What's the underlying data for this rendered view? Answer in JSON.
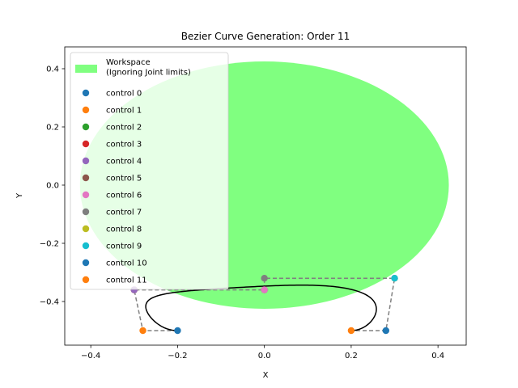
{
  "chart_data": {
    "type": "scatter",
    "title": "Bezier Curve Generation: Order 11",
    "xlabel": "X",
    "ylabel": "Y",
    "xlim": [
      -0.46,
      0.465
    ],
    "ylim": [
      -0.55,
      0.475
    ],
    "xticks": [
      -0.4,
      -0.2,
      0.0,
      0.2,
      0.4
    ],
    "xtick_labels": [
      "−0.4",
      "−0.2",
      "0.0",
      "0.2",
      "0.4"
    ],
    "yticks": [
      -0.4,
      -0.2,
      0.0,
      0.2,
      0.4
    ],
    "ytick_labels": [
      "−0.4",
      "−0.2",
      "0.0",
      "0.2",
      "0.4"
    ],
    "grid": false,
    "legend_placement": "upper-left",
    "workspace": {
      "label": "Workspace\n(Ignoring Joint limits)",
      "color": "#80ff80",
      "center": [
        0.0,
        0.0
      ],
      "radius_x": 0.425,
      "radius_y": 0.425
    },
    "control_points": [
      {
        "name": "control 0",
        "x": -0.2,
        "y": -0.5,
        "color": "#1f77b4"
      },
      {
        "name": "control 1",
        "x": -0.28,
        "y": -0.5,
        "color": "#ff7f0e"
      },
      {
        "name": "control 2",
        "x": -0.3,
        "y": -0.36,
        "color": "#2ca02c"
      },
      {
        "name": "control 3",
        "x": -0.3,
        "y": -0.36,
        "color": "#d62728"
      },
      {
        "name": "control 4",
        "x": -0.3,
        "y": -0.36,
        "color": "#9467bd"
      },
      {
        "name": "control 5",
        "x": 0.0,
        "y": -0.36,
        "color": "#8c564b"
      },
      {
        "name": "control 6",
        "x": 0.0,
        "y": -0.36,
        "color": "#e377c2"
      },
      {
        "name": "control 7",
        "x": 0.0,
        "y": -0.32,
        "color": "#7f7f7f"
      },
      {
        "name": "control 8",
        "x": 0.3,
        "y": -0.32,
        "color": "#bcbd22"
      },
      {
        "name": "control 9",
        "x": 0.3,
        "y": -0.32,
        "color": "#17becf"
      },
      {
        "name": "control 10",
        "x": 0.28,
        "y": -0.5,
        "color": "#1f77b4"
      },
      {
        "name": "control 11",
        "x": 0.2,
        "y": -0.5,
        "color": "#ff7f0e"
      }
    ],
    "control_polygon": {
      "color": "#808080",
      "style": "dashed"
    },
    "curve": {
      "color": "#000000"
    }
  }
}
